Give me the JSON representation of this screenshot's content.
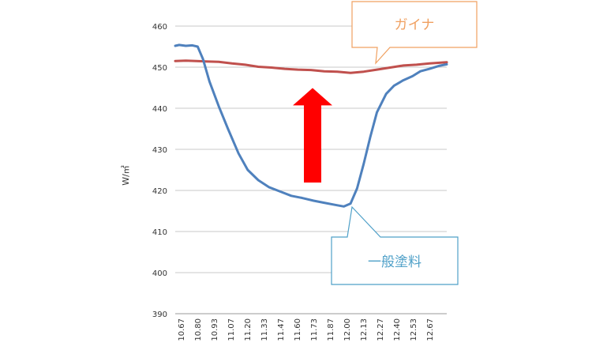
{
  "chart_data": {
    "type": "line",
    "title": "",
    "xlabel": "",
    "ylabel": "W/㎡",
    "ylim": [
      390,
      460
    ],
    "yticks": [
      390,
      400,
      410,
      420,
      430,
      440,
      450,
      460
    ],
    "xlim": [
      10.67,
      12.73
    ],
    "xticks": [
      "10.67",
      "10.80",
      "10.93",
      "11.07",
      "11.20",
      "11.33",
      "11.47",
      "11.60",
      "11.73",
      "11.87",
      "12.00",
      "12.13",
      "12.27",
      "12.40",
      "12.53",
      "12.67"
    ],
    "grid": "horizontal",
    "series": [
      {
        "name": "ガイナ",
        "color": "#c0504d",
        "x": [
          10.67,
          10.75,
          10.83,
          10.9,
          11.0,
          11.1,
          11.2,
          11.3,
          11.4,
          11.5,
          11.6,
          11.7,
          11.8,
          11.9,
          12.0,
          12.1,
          12.2,
          12.3,
          12.4,
          12.5,
          12.6,
          12.73
        ],
        "y": [
          451.5,
          451.6,
          451.5,
          451.4,
          451.3,
          450.9,
          450.6,
          450.1,
          449.9,
          449.6,
          449.4,
          449.3,
          449.0,
          448.9,
          448.6,
          448.9,
          449.4,
          449.9,
          450.4,
          450.6,
          450.9,
          451.2
        ]
      },
      {
        "name": "一般塗料",
        "color": "#4f81bd",
        "x": [
          10.67,
          10.7,
          10.75,
          10.8,
          10.84,
          10.88,
          10.93,
          11.0,
          11.07,
          11.15,
          11.22,
          11.3,
          11.38,
          11.47,
          11.55,
          11.63,
          11.72,
          11.8,
          11.88,
          11.95,
          12.0,
          12.05,
          12.1,
          12.15,
          12.2,
          12.27,
          12.33,
          12.4,
          12.47,
          12.53,
          12.6,
          12.67,
          12.73
        ],
        "y": [
          455.2,
          455.4,
          455.2,
          455.3,
          455.0,
          452.0,
          446.5,
          440.5,
          435.0,
          429.0,
          425.0,
          422.5,
          420.8,
          419.7,
          418.7,
          418.2,
          417.5,
          417.0,
          416.5,
          416.1,
          416.8,
          420.5,
          426.5,
          433.0,
          439.0,
          443.5,
          445.5,
          446.8,
          447.8,
          449.0,
          449.6,
          450.3,
          450.7
        ]
      }
    ],
    "annotations": [
      {
        "label": "ガイナ",
        "color": "#f0a060",
        "target_series": 0
      },
      {
        "label": "一般塗料",
        "color": "#4fa0c8",
        "target_series": 1
      }
    ],
    "arrow": {
      "direction": "up",
      "color": "#ff0000",
      "from_y": 420,
      "to_y": 448,
      "at_x": 11.73
    }
  }
}
